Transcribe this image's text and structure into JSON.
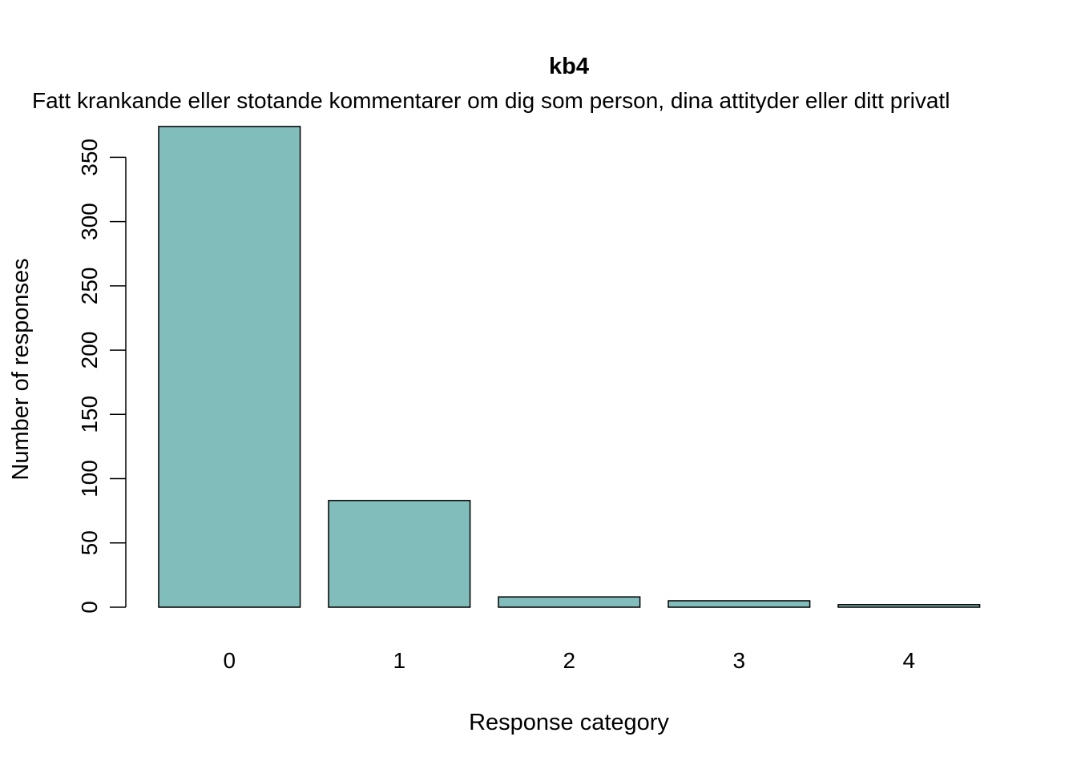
{
  "chart_data": {
    "type": "bar",
    "title": "kb4",
    "subtitle": "Fatt krankande eller stotande kommentarer om dig som person, dina attityder eller ditt privatl",
    "xlabel": "Response category",
    "ylabel": "Number of responses",
    "categories": [
      "0",
      "1",
      "2",
      "3",
      "4"
    ],
    "values": [
      374,
      83,
      8,
      5,
      2
    ],
    "ylim": [
      0,
      374
    ],
    "yticks": [
      0,
      50,
      100,
      150,
      200,
      250,
      300,
      350
    ],
    "bar_color": "#80bdbb",
    "bar_border_color": "#000000",
    "grid": false,
    "legend": "none"
  }
}
